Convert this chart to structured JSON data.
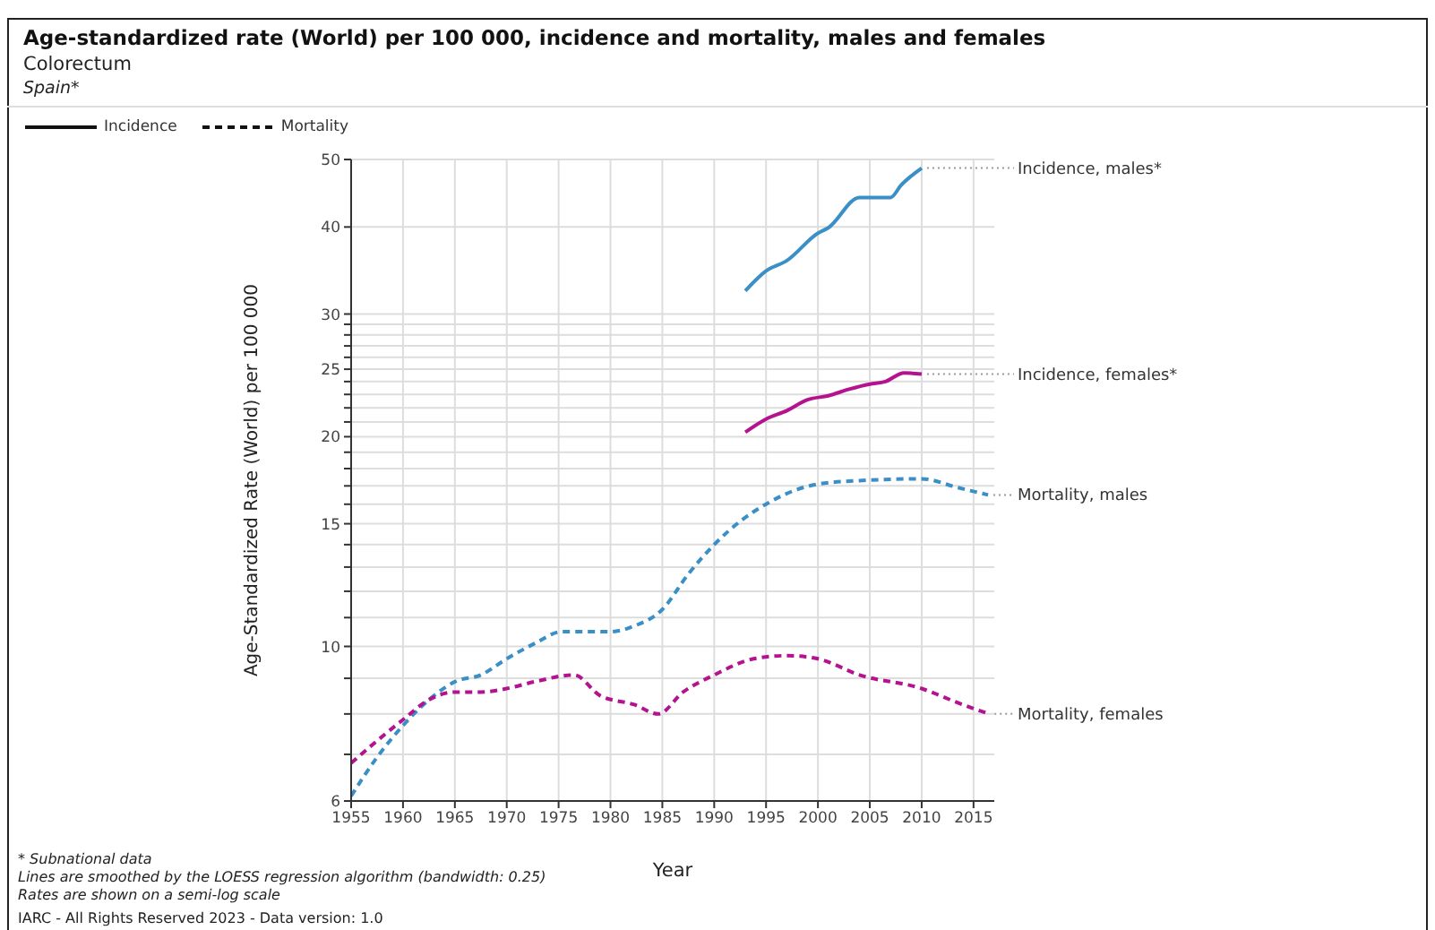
{
  "chart_data": {
    "type": "line",
    "title": "Age-standardized rate (World) per 100 000, incidence and mortality, males and females",
    "subtitle": "Colorectum",
    "xlabel": "Year",
    "ylabel": "Age-Standardized Rate (World) per 100 000",
    "annotations": [
      "Spain*",
      "Incidence",
      "Mortality",
      "* Subnational data",
      "Lines are smoothed by the LOESS regression algorithm (bandwidth: 0.25)",
      "Rates are shown on a semi-log scale",
      "IARC - All Rights Reserved 2023 - Data version: 1.0"
    ],
    "log": "y",
    "grid": true,
    "legend": "right",
    "marker": "none",
    "xlim": [
      1955,
      2017
    ],
    "xticks": [
      1955,
      1960,
      1965,
      1970,
      1975,
      1980,
      1985,
      1990,
      1995,
      2000,
      2005,
      2010,
      2015
    ],
    "ylim": [
      6,
      50
    ],
    "yticks": [
      6,
      {
        "value": 7,
        "label": null
      },
      {
        "value": 8,
        "label": null
      },
      {
        "value": 9,
        "label": null
      },
      10,
      {
        "value": 11,
        "label": null
      },
      {
        "value": 12,
        "label": null
      },
      {
        "value": 13,
        "label": null
      },
      {
        "value": 14,
        "label": null
      },
      15,
      {
        "value": 16,
        "label": null
      },
      {
        "value": 17,
        "label": null
      },
      {
        "value": 18,
        "label": null
      },
      {
        "value": 19,
        "label": null
      },
      20,
      {
        "value": 21,
        "label": null
      },
      {
        "value": 22,
        "label": null
      },
      {
        "value": 23,
        "label": null
      },
      {
        "value": 24,
        "label": null
      },
      25,
      {
        "value": 26,
        "label": null
      },
      {
        "value": 27,
        "label": null
      },
      {
        "value": 28,
        "label": null
      },
      {
        "value": 29,
        "label": null
      },
      30,
      40,
      50
    ],
    "series": [
      {
        "name": "Incidence, males*",
        "color": "#3a8fc6",
        "line_style": "solid",
        "x": [
          1993,
          1995,
          1997,
          2000,
          2001,
          2004,
          2007,
          2008,
          2010
        ],
        "values": [
          32.4,
          34.6,
          35.8,
          39.2,
          39.9,
          44.1,
          44.1,
          45.9,
          48.6
        ]
      },
      {
        "name": "Incidence, females*",
        "color": "#b5128f",
        "line_style": "solid",
        "x": [
          1993,
          1995,
          1997,
          1999,
          2001,
          2003,
          2005,
          2006.5,
          2008.3,
          2010
        ],
        "values": [
          20.3,
          21.2,
          21.8,
          22.6,
          22.9,
          23.4,
          23.8,
          24.0,
          24.7,
          24.6
        ]
      },
      {
        "name": "Mortality, males",
        "color": "#3a8fc6",
        "line_style": "dashed",
        "x": [
          1955,
          1957.4,
          1960,
          1963,
          1965,
          1967.5,
          1970,
          1972.7,
          1975.3,
          1977.6,
          1980,
          1982.3,
          1985,
          1987.5,
          1990,
          1992.7,
          1995.3,
          1998,
          2000,
          2004,
          2010,
          2013.5,
          2016.4
        ],
        "values": [
          6.1,
          6.9,
          7.7,
          8.5,
          8.9,
          9.1,
          9.6,
          10.1,
          10.5,
          10.5,
          10.5,
          10.7,
          11.3,
          12.7,
          14.0,
          15.2,
          16.1,
          16.8,
          17.1,
          17.3,
          17.4,
          16.9,
          16.5
        ]
      },
      {
        "name": "Mortality, females",
        "color": "#b5128f",
        "line_style": "dashed",
        "x": [
          1955,
          1957.4,
          1960,
          1962.6,
          1965,
          1967.5,
          1970,
          1972.7,
          1976.5,
          1979,
          1982.3,
          1984.6,
          1987,
          1990,
          1993.8,
          1997,
          2000,
          2004,
          2010,
          2013.5,
          2016.5
        ],
        "values": [
          6.8,
          7.3,
          7.85,
          8.4,
          8.6,
          8.6,
          8.7,
          8.9,
          9.1,
          8.5,
          8.25,
          8.0,
          8.6,
          9.1,
          9.6,
          9.7,
          9.6,
          9.1,
          8.7,
          8.3,
          8.0
        ]
      }
    ]
  }
}
